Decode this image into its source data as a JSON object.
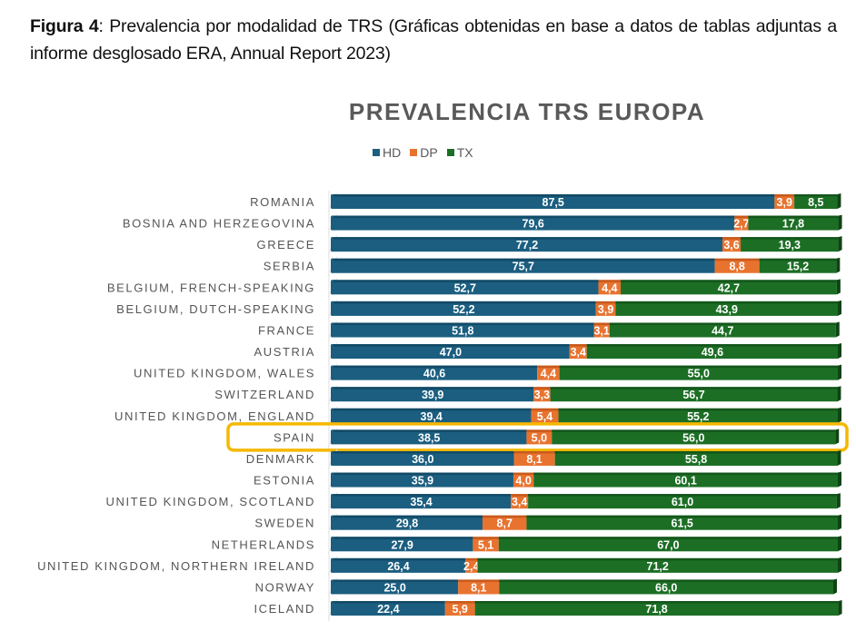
{
  "caption": {
    "label": "Figura 4",
    "text": ": Prevalencia por modalidad de TRS (Gráficas obtenidas en base a datos de tablas adjuntas a informe desglosado ERA, Annual Report 2023)"
  },
  "colors": {
    "HD": "#1b5e80",
    "DP": "#e8732f",
    "TX": "#1c6e25",
    "highlight": "#f5b800"
  },
  "chart_data": {
    "type": "bar",
    "orientation": "horizontal",
    "stacked": true,
    "title": "PREVALENCIA TRS EUROPA",
    "xlabel": "",
    "ylabel": "",
    "xlim": [
      0,
      100
    ],
    "legend": {
      "placement": "top-center",
      "entries": [
        "HD",
        "DP",
        "TX"
      ]
    },
    "grid": false,
    "highlighted_category": "SPAIN",
    "categories": [
      "ROMANIA",
      "BOSNIA AND HERZEGOVINA",
      "GREECE",
      "SERBIA",
      "BELGIUM, FRENCH-SPEAKING",
      "BELGIUM, DUTCH-SPEAKING",
      "FRANCE",
      "AUSTRIA",
      "UNITED KINGDOM, WALES",
      "SWITZERLAND",
      "UNITED KINGDOM, ENGLAND",
      "SPAIN",
      "DENMARK",
      "ESTONIA",
      "UNITED KINGDOM, SCOTLAND",
      "SWEDEN",
      "NETHERLANDS",
      "UNITED KINGDOM, NORTHERN IRELAND",
      "NORWAY",
      "ICELAND"
    ],
    "series": [
      {
        "name": "HD",
        "values": [
          87.5,
          79.6,
          77.2,
          75.7,
          52.7,
          52.2,
          51.8,
          47.0,
          40.6,
          39.9,
          39.4,
          38.5,
          36.0,
          35.9,
          35.4,
          29.8,
          27.9,
          26.4,
          25.0,
          22.4
        ]
      },
      {
        "name": "DP",
        "values": [
          3.9,
          2.7,
          3.6,
          8.8,
          4.4,
          3.9,
          3.1,
          3.4,
          4.4,
          3.3,
          5.4,
          5.0,
          8.1,
          4.0,
          3.4,
          8.7,
          5.1,
          2.4,
          8.1,
          5.9
        ]
      },
      {
        "name": "TX",
        "values": [
          8.5,
          17.8,
          19.3,
          15.2,
          42.7,
          43.9,
          44.7,
          49.6,
          55.0,
          56.7,
          55.2,
          56.0,
          55.8,
          60.1,
          61.0,
          61.5,
          67.0,
          71.2,
          66.0,
          71.8
        ]
      }
    ],
    "value_labels": [
      [
        "87,5",
        "3,9",
        "8,5"
      ],
      [
        "79,6",
        "2,7",
        "17,8"
      ],
      [
        "77,2",
        "3,6",
        "19,3"
      ],
      [
        "75,7",
        "8,8",
        "15,2"
      ],
      [
        "52,7",
        "4,4",
        "42,7"
      ],
      [
        "52,2",
        "3,9",
        "43,9"
      ],
      [
        "51,8",
        "3,1",
        "44,7"
      ],
      [
        "47,0",
        "3,4",
        "49,6"
      ],
      [
        "40,6",
        "4,4",
        "55,0"
      ],
      [
        "39,9",
        "3,3",
        "56,7"
      ],
      [
        "39,4",
        "5,4",
        "55,2"
      ],
      [
        "38,5",
        "5,0",
        "56,0"
      ],
      [
        "36,0",
        "8,1",
        "55,8"
      ],
      [
        "35,9",
        "4,0",
        "60,1"
      ],
      [
        "35,4",
        "3,4",
        "61,0"
      ],
      [
        "29,8",
        "8,7",
        "61,5"
      ],
      [
        "27,9",
        "5,1",
        "67,0"
      ],
      [
        "26,4",
        "2,4",
        "71,2"
      ],
      [
        "25,0",
        "8,1",
        "66,0"
      ],
      [
        "22,4",
        "5,9",
        "71,8"
      ]
    ]
  }
}
